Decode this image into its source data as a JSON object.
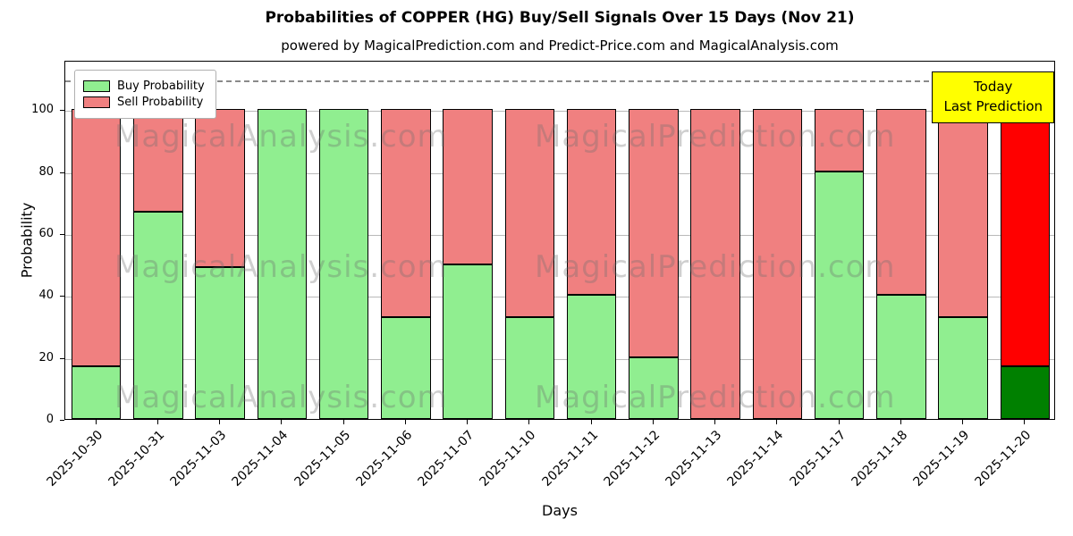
{
  "title": "Probabilities of COPPER (HG) Buy/Sell Signals Over 15 Days (Nov 21)",
  "subtitle": "powered by MagicalPrediction.com and Predict-Price.com and MagicalAnalysis.com",
  "legend": [
    {
      "label": "Buy Probability",
      "color": "#90ee90"
    },
    {
      "label": "Sell Probability",
      "color": "#f08080"
    }
  ],
  "annotation": {
    "line1": "Today",
    "line2": "Last Prediction",
    "bg": "#ffff00"
  },
  "watermarks": [
    "MagicalAnalysis.com",
    "MagicalPrediction.com"
  ],
  "chart_data": {
    "type": "bar",
    "stacked": true,
    "title": "Probabilities of COPPER (HG) Buy/Sell Signals Over 15 Days (Nov 21)",
    "xlabel": "Days",
    "ylabel": "Probability",
    "categories": [
      "2025-10-30",
      "2025-10-31",
      "2025-11-03",
      "2025-11-04",
      "2025-11-05",
      "2025-11-06",
      "2025-11-07",
      "2025-11-10",
      "2025-11-11",
      "2025-11-12",
      "2025-11-13",
      "2025-11-14",
      "2025-11-17",
      "2025-11-18",
      "2025-11-19",
      "2025-11-20"
    ],
    "series": [
      {
        "name": "Buy Probability",
        "color": "#90ee90",
        "last_color": "#008000",
        "values": [
          17,
          67,
          49,
          100,
          100,
          33,
          50,
          33,
          40,
          20,
          0,
          0,
          80,
          40,
          33,
          17
        ]
      },
      {
        "name": "Sell Probability",
        "color": "#f08080",
        "last_color": "#ff0000",
        "values": [
          83,
          33,
          51,
          0,
          0,
          67,
          50,
          67,
          60,
          80,
          100,
          100,
          20,
          60,
          67,
          83
        ]
      }
    ],
    "ylim": [
      0,
      116
    ],
    "yticks": [
      0,
      20,
      40,
      60,
      80,
      100
    ],
    "dashed_line_y": 110,
    "grid": true,
    "legend_position": "upper left"
  }
}
